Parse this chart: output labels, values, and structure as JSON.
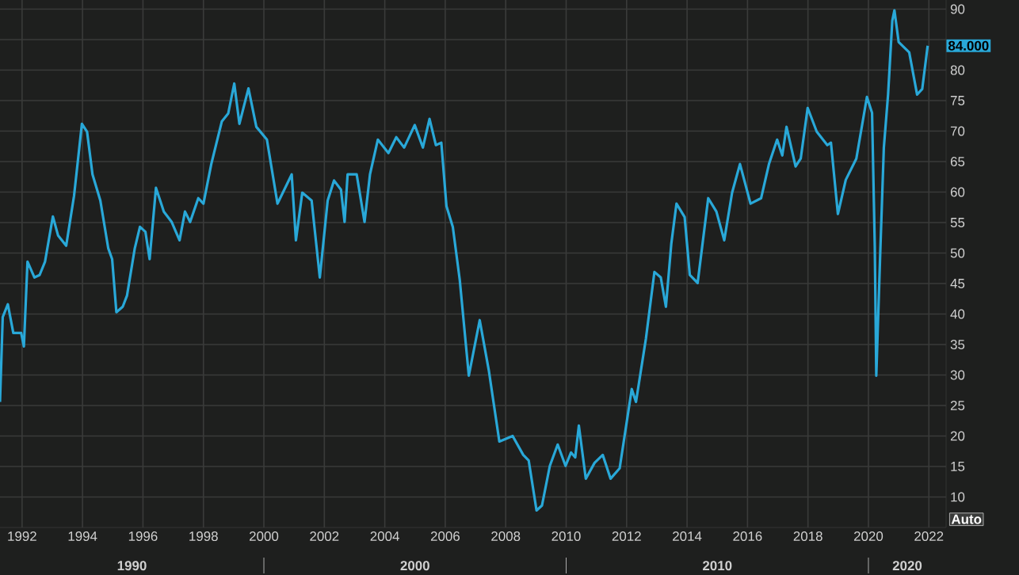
{
  "chart_data": {
    "type": "line",
    "x": [
      1991.27,
      1991.36,
      1991.53,
      1991.71,
      1991.97,
      1992.06,
      1992.18,
      1992.41,
      1992.58,
      1992.76,
      1993.02,
      1993.19,
      1993.46,
      1993.72,
      1993.98,
      1994.15,
      1994.33,
      1994.59,
      1994.85,
      1994.98,
      1995.12,
      1995.33,
      1995.47,
      1995.73,
      1995.9,
      1996.08,
      1996.22,
      1996.43,
      1996.69,
      1996.95,
      1997.21,
      1997.39,
      1997.56,
      1997.83,
      1998.0,
      1998.26,
      1998.61,
      1998.82,
      1999.02,
      1999.19,
      1999.49,
      1999.75,
      2000.1,
      2000.45,
      2000.92,
      2001.06,
      2001.27,
      2001.58,
      2001.85,
      2002.11,
      2002.32,
      2002.55,
      2002.67,
      2002.77,
      2003.07,
      2003.33,
      2003.51,
      2003.77,
      2004.12,
      2004.38,
      2004.64,
      2004.99,
      2005.26,
      2005.48,
      2005.69,
      2005.87,
      2006.04,
      2006.25,
      2006.48,
      2006.78,
      2007.14,
      2007.44,
      2007.79,
      2008.23,
      2008.58,
      2008.76,
      2009.02,
      2009.2,
      2009.46,
      2009.72,
      2009.98,
      2010.16,
      2010.3,
      2010.42,
      2010.65,
      2010.94,
      2011.21,
      2011.47,
      2011.77,
      2012.17,
      2012.31,
      2012.64,
      2012.92,
      2013.13,
      2013.3,
      2013.48,
      2013.65,
      2013.92,
      2014.09,
      2014.35,
      2014.7,
      2014.97,
      2015.23,
      2015.49,
      2015.75,
      2016.1,
      2016.45,
      2016.71,
      2016.98,
      2017.15,
      2017.29,
      2017.59,
      2017.76,
      2017.99,
      2018.29,
      2018.64,
      2018.76,
      2018.99,
      2019.25,
      2019.6,
      2019.95,
      2020.12,
      2020.21,
      2020.26,
      2020.39,
      2020.51,
      2020.65,
      2020.79,
      2020.86,
      2021.0,
      2021.35,
      2021.61,
      2021.78,
      2021.96
    ],
    "series": [
      {
        "color": "#29a8d8",
        "values": [
          25.6,
          39.5,
          41.6,
          36.9,
          36.9,
          34.7,
          48.6,
          46.0,
          46.4,
          48.6,
          56.0,
          52.9,
          51.2,
          59.4,
          71.2,
          69.9,
          62.9,
          58.6,
          50.8,
          49.0,
          40.3,
          41.2,
          43.0,
          50.8,
          54.3,
          53.5,
          49.0,
          60.7,
          56.8,
          55.1,
          52.1,
          56.8,
          55.1,
          59.0,
          58.1,
          64.6,
          71.6,
          72.9,
          77.8,
          71.2,
          77.0,
          70.7,
          68.6,
          58.1,
          62.9,
          52.1,
          59.9,
          58.6,
          46.0,
          58.6,
          61.9,
          60.4,
          55.1,
          62.9,
          62.9,
          55.1,
          62.9,
          68.6,
          66.4,
          69.0,
          67.3,
          71.0,
          67.3,
          72.0,
          67.7,
          68.1,
          57.7,
          54.3,
          45.6,
          29.9,
          39.0,
          30.8,
          19.1,
          20.0,
          16.9,
          16.0,
          7.8,
          8.6,
          15.1,
          18.6,
          15.1,
          17.3,
          16.5,
          21.7,
          13.0,
          15.6,
          16.9,
          13.0,
          14.7,
          27.7,
          25.6,
          36.0,
          46.9,
          46.0,
          41.2,
          51.6,
          58.1,
          55.9,
          46.4,
          45.1,
          59.0,
          56.8,
          52.1,
          59.9,
          64.6,
          58.1,
          59.0,
          64.6,
          68.6,
          66.0,
          70.7,
          64.2,
          65.5,
          73.8,
          69.9,
          67.7,
          68.1,
          56.4,
          62.0,
          65.5,
          75.6,
          73.0,
          51.2,
          29.9,
          49.9,
          67.3,
          76.0,
          88.1,
          89.8,
          84.6,
          82.9,
          76.0,
          76.9,
          84.0
        ]
      }
    ],
    "xlim": [
      1991.27,
      2022.57
    ],
    "ylim": [
      5,
      91.5
    ],
    "xticks": [
      1992,
      1994,
      1996,
      1998,
      2000,
      2002,
      2004,
      2006,
      2008,
      2010,
      2012,
      2014,
      2016,
      2018,
      2020,
      2022
    ],
    "yticks": [
      10,
      15,
      20,
      25,
      30,
      35,
      40,
      45,
      50,
      55,
      60,
      65,
      70,
      75,
      80,
      {
        "value": 85,
        "label": null
      },
      90
    ],
    "grid": true,
    "annotations": [
      "1990",
      "2000",
      "2010",
      "2020",
      "84.000",
      "Auto"
    ]
  }
}
